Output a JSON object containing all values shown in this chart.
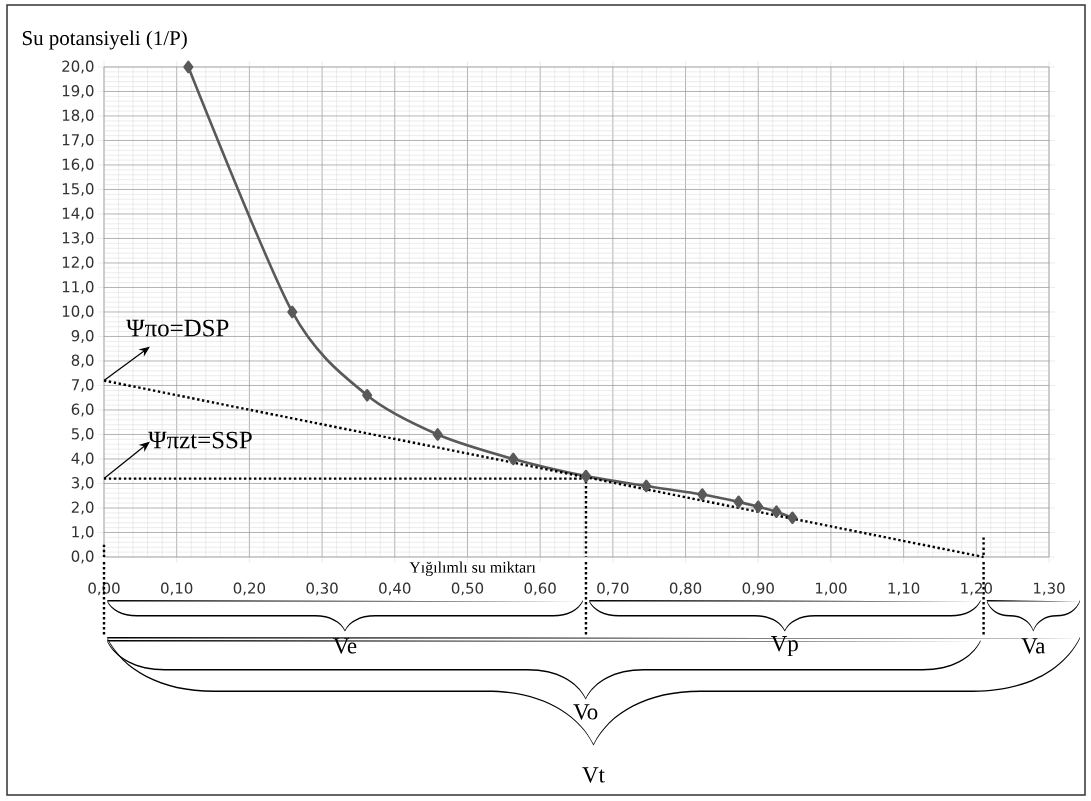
{
  "chart_data": {
    "type": "line",
    "ylabel": "Su potansiyeli (1/P)",
    "xlabel": "Yığılımlı su miktarı",
    "xlim": [
      0,
      1.3
    ],
    "ylim": [
      0,
      20
    ],
    "xticks": [
      {
        "value": 0,
        "label": "0,00"
      },
      {
        "value": 0.1,
        "label": "0,10"
      },
      {
        "value": 0.2,
        "label": "0,20"
      },
      {
        "value": 0.3,
        "label": "0,30"
      },
      {
        "value": 0.4,
        "label": "0,40"
      },
      {
        "value": 0.5,
        "label": "0,50"
      },
      {
        "value": 0.6,
        "label": "0,60"
      },
      {
        "value": 0.7,
        "label": "0,70"
      },
      {
        "value": 0.8,
        "label": "0,80"
      },
      {
        "value": 0.9,
        "label": "0,90"
      },
      {
        "value": 1.0,
        "label": "1,00"
      },
      {
        "value": 1.1,
        "label": "1,10"
      },
      {
        "value": 1.2,
        "label": "1,20"
      },
      {
        "value": 1.3,
        "label": "1,30"
      }
    ],
    "yticks": [
      {
        "value": 0,
        "label": "0,0"
      },
      {
        "value": 1,
        "label": "1,0"
      },
      {
        "value": 2,
        "label": "2,0"
      },
      {
        "value": 3,
        "label": "3,0"
      },
      {
        "value": 4,
        "label": "4,0"
      },
      {
        "value": 5,
        "label": "5,0"
      },
      {
        "value": 6,
        "label": "6,0"
      },
      {
        "value": 7,
        "label": "7,0"
      },
      {
        "value": 8,
        "label": "8,0"
      },
      {
        "value": 9,
        "label": "9,0"
      },
      {
        "value": 10,
        "label": "10,0"
      },
      {
        "value": 11,
        "label": "11,0"
      },
      {
        "value": 12,
        "label": "12,0"
      },
      {
        "value": 13,
        "label": "13,0"
      },
      {
        "value": 14,
        "label": "14,0"
      },
      {
        "value": 15,
        "label": "15,0"
      },
      {
        "value": 16,
        "label": "16,0"
      },
      {
        "value": 17,
        "label": "17,0"
      },
      {
        "value": 18,
        "label": "18,0"
      },
      {
        "value": 19,
        "label": "19,0"
      },
      {
        "value": 20,
        "label": "20,0"
      }
    ],
    "grid": true,
    "series": [
      {
        "color": "#595959",
        "marker": "diamond",
        "line_style": "solid",
        "x": [
          0.116,
          0.259,
          0.362,
          0.459,
          0.563,
          0.663,
          0.746,
          0.823,
          0.873,
          0.9,
          0.925,
          0.947
        ],
        "values": [
          20.0,
          10.0,
          6.6,
          5.0,
          4.0,
          3.3,
          2.9,
          2.55,
          2.25,
          2.05,
          1.85,
          1.6
        ]
      },
      {
        "color": "#000000",
        "line_style": "dotted",
        "x": [
          0,
          1.21
        ],
        "values": [
          7.2,
          0
        ]
      },
      {
        "color": "#000000",
        "line_style": "dotted",
        "x": [
          0,
          0.663
        ],
        "values": [
          3.2,
          3.2
        ]
      },
      {
        "color": "#000000",
        "line_style": "dotted",
        "x": [
          0,
          0
        ],
        "values": [
          0.5,
          0
        ]
      },
      {
        "color": "#000000",
        "line_style": "dotted",
        "x": [
          0.663,
          0.663
        ],
        "values": [
          3.3,
          0
        ]
      },
      {
        "color": "#000000",
        "line_style": "dotted",
        "x": [
          1.21,
          1.21
        ],
        "values": [
          0.8,
          0
        ]
      }
    ],
    "annotations": [
      {
        "text": "Ψπo=DSP",
        "x": 0,
        "y": 7.2
      },
      {
        "text": "Ψπzt=SSP",
        "x": 0,
        "y": 3.2
      },
      "Ve",
      "Vp",
      "Va",
      "Vo",
      "Vt"
    ]
  }
}
